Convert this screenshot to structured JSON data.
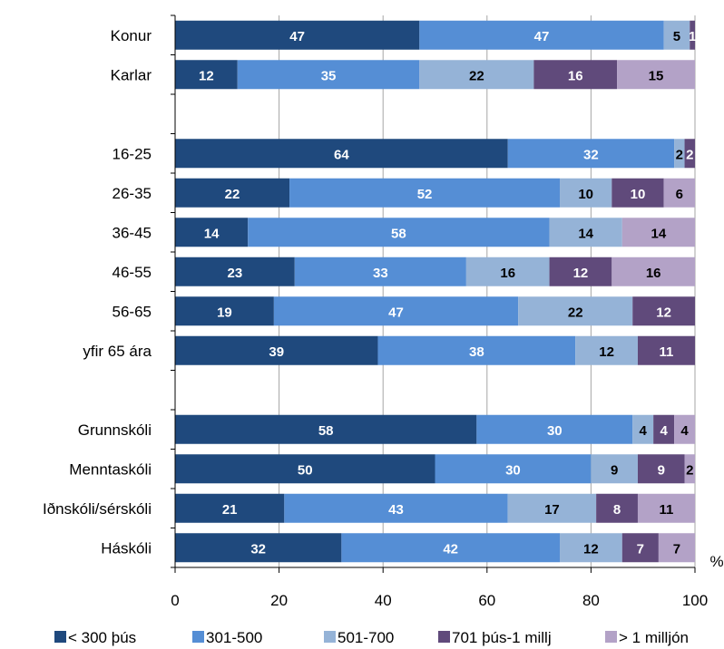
{
  "chart_data": {
    "type": "bar",
    "orientation": "horizontal",
    "stacked": true,
    "title": "",
    "xlabel": "",
    "x_unit": "%",
    "xlim": [
      0,
      100
    ],
    "xticks": [
      0,
      20,
      40,
      60,
      80,
      100
    ],
    "grid": true,
    "legend_position": "bottom",
    "categories": [
      "Konur",
      "Karlar",
      "",
      "16-25",
      "26-35",
      "36-45",
      "46-55",
      "56-65",
      "yfir 65 ára",
      "",
      "Grunnskóli",
      "Menntaskóli",
      "Iðnskóli/sérskóli",
      "Háskóli"
    ],
    "series": [
      {
        "name": "< 300 þús",
        "color": "#1f497d",
        "values": [
          47,
          12,
          null,
          64,
          22,
          14,
          23,
          19,
          39,
          null,
          58,
          50,
          21,
          32
        ]
      },
      {
        "name": "301-500",
        "color": "#558ed5",
        "values": [
          47,
          35,
          null,
          32,
          52,
          58,
          33,
          47,
          38,
          null,
          30,
          30,
          43,
          42
        ]
      },
      {
        "name": "501-700",
        "color": "#95b3d7",
        "values": [
          5,
          22,
          null,
          2,
          10,
          14,
          16,
          22,
          12,
          null,
          4,
          9,
          17,
          12
        ]
      },
      {
        "name": "701 þús-1 millj",
        "color": "#604a7b",
        "values": [
          1,
          16,
          null,
          2,
          10,
          0,
          12,
          12,
          11,
          null,
          4,
          9,
          8,
          7
        ]
      },
      {
        "name": "> 1 milljón",
        "color": "#b3a2c7",
        "values": [
          0,
          15,
          null,
          0,
          6,
          14,
          16,
          0,
          0,
          null,
          4,
          2,
          11,
          7
        ]
      }
    ]
  }
}
